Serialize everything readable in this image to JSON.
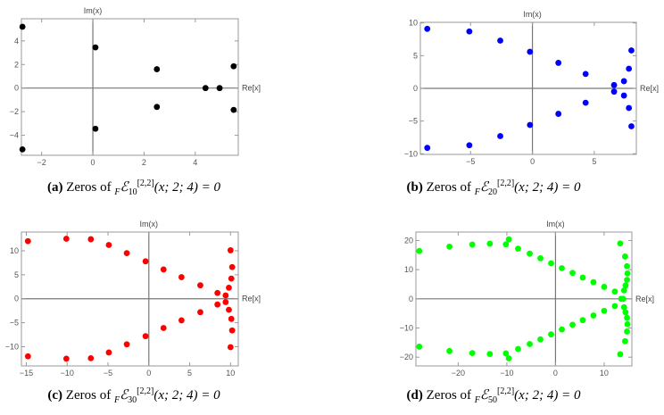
{
  "chart_data": [
    {
      "type": "scatter",
      "id": "a",
      "color": "#000000",
      "xlabel": "Re[x]",
      "ylabel": "Im(x)",
      "xlim": [
        -2.79,
        5.68
      ],
      "ylim": [
        -5.7,
        5.88
      ],
      "xticks": [
        -2,
        0,
        2,
        4
      ],
      "yticks": [
        -4,
        -2,
        0,
        2,
        4
      ],
      "points": [
        [
          -2.75,
          5.2
        ],
        [
          -2.75,
          -5.2
        ],
        [
          0.1,
          3.45
        ],
        [
          0.1,
          -3.45
        ],
        [
          2.5,
          1.6
        ],
        [
          2.5,
          -1.6
        ],
        [
          4.4,
          0
        ],
        [
          4.95,
          0
        ],
        [
          5.5,
          1.85
        ],
        [
          5.5,
          -1.85
        ]
      ],
      "caption": {
        "label": "(a)",
        "text": "Zeros of",
        "sub_f": "F",
        "script": "ℰ",
        "index": "10",
        "sup": "[2,2]",
        "args": "(x; 2; 4) = 0"
      }
    },
    {
      "type": "scatter",
      "id": "b",
      "color": "#0000ff",
      "xlabel": "Re[x]",
      "ylabel": "Im(x)",
      "xlim": [
        -9.06,
        8.4
      ],
      "ylim": [
        -10.1,
        10.1
      ],
      "xticks": [
        -5,
        0,
        5
      ],
      "yticks": [
        -10,
        -5,
        0,
        5,
        10
      ],
      "points": [
        [
          -8.5,
          9.1
        ],
        [
          -8.5,
          -9.1
        ],
        [
          -5.1,
          8.7
        ],
        [
          -5.1,
          -8.7
        ],
        [
          -2.6,
          7.3
        ],
        [
          -2.6,
          -7.3
        ],
        [
          -0.2,
          5.6
        ],
        [
          -0.2,
          -5.6
        ],
        [
          2.1,
          3.9
        ],
        [
          2.1,
          -3.9
        ],
        [
          4.3,
          2.2
        ],
        [
          4.3,
          -2.2
        ],
        [
          6.6,
          0.5
        ],
        [
          6.6,
          -0.5
        ],
        [
          7.4,
          1.1
        ],
        [
          7.4,
          -1.1
        ],
        [
          7.8,
          3.0
        ],
        [
          7.8,
          -3.0
        ],
        [
          8.0,
          5.8
        ],
        [
          8.0,
          -5.8
        ]
      ],
      "caption": {
        "label": "(b)",
        "text": "Zeros of",
        "sub_f": "F",
        "script": "ℰ",
        "index": "20",
        "sup": "[2,2]",
        "args": "(x; 2; 4) = 0"
      }
    },
    {
      "type": "scatter",
      "id": "c",
      "color": "#ff0000",
      "xlabel": "Re[x]",
      "ylabel": "Im(x)",
      "xlim": [
        -15.6,
        10.95
      ],
      "ylim": [
        -14.0,
        13.9
      ],
      "xticks": [
        -15,
        -10,
        -5,
        0,
        5,
        10
      ],
      "yticks": [
        -10,
        -5,
        0,
        5,
        10
      ],
      "points": [
        [
          -14.8,
          12.0
        ],
        [
          -14.8,
          -12.0
        ],
        [
          -10.1,
          12.5
        ],
        [
          -10.1,
          -12.5
        ],
        [
          -7.1,
          12.4
        ],
        [
          -7.1,
          -12.4
        ],
        [
          -4.9,
          11.2
        ],
        [
          -4.9,
          -11.2
        ],
        [
          -2.7,
          9.5
        ],
        [
          -2.7,
          -9.5
        ],
        [
          -0.4,
          7.8
        ],
        [
          -0.4,
          -7.8
        ],
        [
          1.8,
          6.1
        ],
        [
          1.8,
          -6.1
        ],
        [
          4.0,
          4.5
        ],
        [
          4.0,
          -4.5
        ],
        [
          6.3,
          2.8
        ],
        [
          6.3,
          -2.8
        ],
        [
          8.4,
          1.2
        ],
        [
          8.4,
          -1.2
        ],
        [
          9.4,
          0.7
        ],
        [
          9.4,
          -0.7
        ],
        [
          9.8,
          2.3
        ],
        [
          9.8,
          -2.3
        ],
        [
          10.1,
          4.2
        ],
        [
          10.1,
          -4.2
        ],
        [
          10.2,
          6.6
        ],
        [
          10.2,
          -6.6
        ],
        [
          10.0,
          10.1
        ],
        [
          10.0,
          -10.1
        ]
      ],
      "caption": {
        "label": "(c)",
        "text": "Zeros of",
        "sub_f": "F",
        "script": "ℰ",
        "index": "30",
        "sup": "[2,2]",
        "args": "(x; 2; 4) = 0"
      }
    },
    {
      "type": "scatter",
      "id": "d",
      "color": "#00ff00",
      "xlabel": "Re[x]",
      "ylabel": "Im(x)",
      "xlim": [
        -28.7,
        15.7
      ],
      "ylim": [
        -23.0,
        22.9
      ],
      "xticks": [
        -20,
        -10,
        0,
        10
      ],
      "yticks": [
        -20,
        -10,
        0,
        10,
        20
      ],
      "points": [
        [
          -28,
          16.4
        ],
        [
          -28,
          -16.4
        ],
        [
          -21.8,
          17.9
        ],
        [
          -21.8,
          -17.9
        ],
        [
          -17.1,
          18.6
        ],
        [
          -17.1,
          -18.6
        ],
        [
          -13.5,
          18.9
        ],
        [
          -13.5,
          -18.9
        ],
        [
          -10.2,
          18.7
        ],
        [
          -10.2,
          -18.7
        ],
        [
          -9.6,
          20.4
        ],
        [
          -9.6,
          -20.4
        ],
        [
          -7.7,
          17.2
        ],
        [
          -7.7,
          -17.2
        ],
        [
          -5.3,
          15.5
        ],
        [
          -5.3,
          -15.5
        ],
        [
          -3.1,
          13.9
        ],
        [
          -3.1,
          -13.9
        ],
        [
          -0.9,
          12.2
        ],
        [
          -0.9,
          -12.2
        ],
        [
          1.3,
          10.5
        ],
        [
          1.3,
          -10.5
        ],
        [
          3.5,
          8.9
        ],
        [
          3.5,
          -8.9
        ],
        [
          5.6,
          7.3
        ],
        [
          5.6,
          -7.3
        ],
        [
          7.8,
          5.7
        ],
        [
          7.8,
          -5.7
        ],
        [
          10.0,
          4.1
        ],
        [
          10.0,
          -4.1
        ],
        [
          12.2,
          2.5
        ],
        [
          12.2,
          -2.5
        ],
        [
          13.5,
          0
        ],
        [
          13.9,
          0
        ],
        [
          14.1,
          2.9
        ],
        [
          14.1,
          -2.9
        ],
        [
          14.4,
          4.6
        ],
        [
          14.4,
          -4.6
        ],
        [
          14.7,
          6.5
        ],
        [
          14.7,
          -6.5
        ],
        [
          14.8,
          8.7
        ],
        [
          14.8,
          -8.7
        ],
        [
          14.7,
          11.2
        ],
        [
          14.7,
          -11.2
        ],
        [
          14.3,
          14.5
        ],
        [
          14.3,
          -14.5
        ],
        [
          13.3,
          19.0
        ],
        [
          13.3,
          -19.0
        ]
      ],
      "caption": {
        "label": "(d)",
        "text": "Zeros of",
        "sub_f": "F",
        "script": "ℰ",
        "index": "50",
        "sup": "[2,2]",
        "args": "(x; 2; 4) = 0"
      }
    }
  ]
}
